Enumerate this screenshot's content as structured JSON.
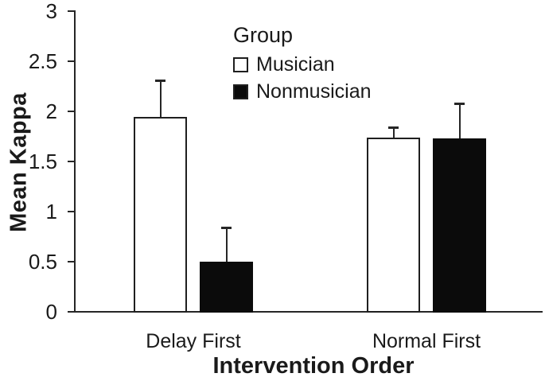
{
  "figure": {
    "background": "#ffffff",
    "ink_color": "#1f1f1f"
  },
  "chart_data": {
    "type": "bar",
    "title": "",
    "xlabel": "Intervention Order",
    "ylabel": "Mean Kappa",
    "categories": [
      "Delay First",
      "Normal First"
    ],
    "series": [
      {
        "name": "Musician",
        "fill": "#ffffff",
        "values": [
          1.94,
          1.73
        ],
        "error_upper": [
          0.36,
          0.1
        ]
      },
      {
        "name": "Nonmusician",
        "fill": "#0b0b0b",
        "values": [
          0.49,
          1.72
        ],
        "error_upper": [
          0.34,
          0.35
        ]
      }
    ],
    "ylim": [
      0,
      3
    ],
    "yticks": [
      0,
      0.5,
      1,
      1.5,
      2,
      2.5,
      3
    ],
    "ytick_labels": [
      "0",
      "0.5",
      "1",
      "1.5",
      "2",
      "2.5",
      "3"
    ],
    "legend": {
      "title": "Group",
      "position": "inside-top-center"
    },
    "grid": false,
    "axis_color": "#262626",
    "bar_outline_color": "#1f1f1f",
    "error_bar_direction": "upper-only"
  }
}
